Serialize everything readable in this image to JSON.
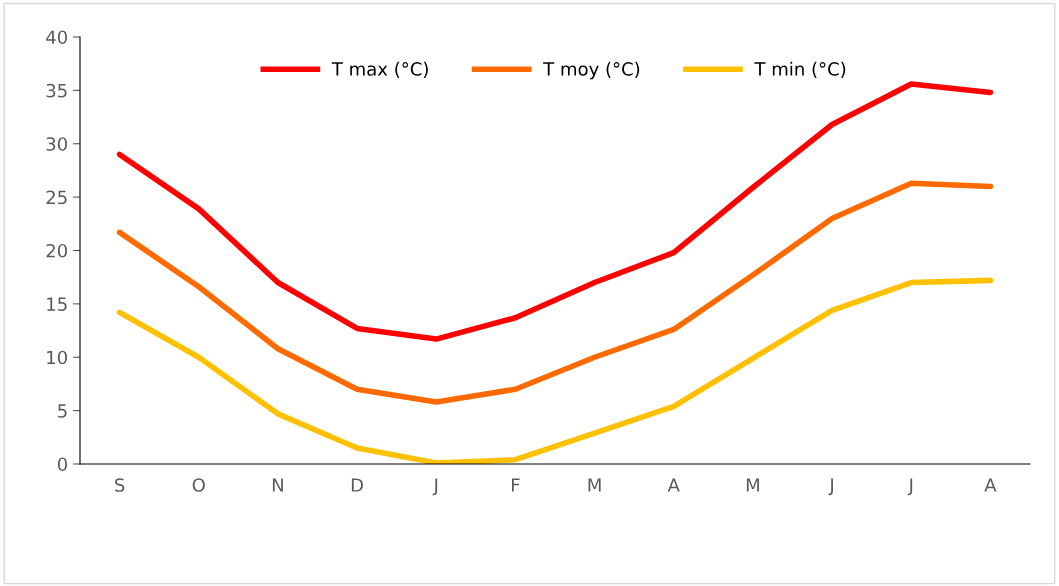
{
  "chart_data": {
    "type": "line",
    "categories": [
      "S",
      "O",
      "N",
      "D",
      "J",
      "F",
      "M",
      "A",
      "M",
      "J",
      "J",
      "A"
    ],
    "series": [
      {
        "name": "T max (°C)",
        "color": "#ff0000",
        "values": [
          29.0,
          23.9,
          17.0,
          12.7,
          11.7,
          13.7,
          17.0,
          19.8,
          25.9,
          31.8,
          35.6,
          34.8
        ]
      },
      {
        "name": "T moy (°C)",
        "color": "#ff6a00",
        "values": [
          21.7,
          16.6,
          10.8,
          7.0,
          5.8,
          7.0,
          10.0,
          12.6,
          17.7,
          23.0,
          26.3,
          26.0
        ]
      },
      {
        "name": "T min (°C)",
        "color": "#ffc000",
        "values": [
          14.2,
          10.0,
          4.7,
          1.5,
          0.1,
          0.4,
          2.9,
          5.4,
          9.9,
          14.4,
          17.0,
          17.2
        ]
      }
    ],
    "ylim": [
      0,
      40
    ],
    "yticks": [
      0,
      5,
      10,
      15,
      20,
      25,
      30,
      35,
      40
    ],
    "grid": false,
    "legend": "top",
    "marker": "none",
    "line_style": "solid"
  }
}
